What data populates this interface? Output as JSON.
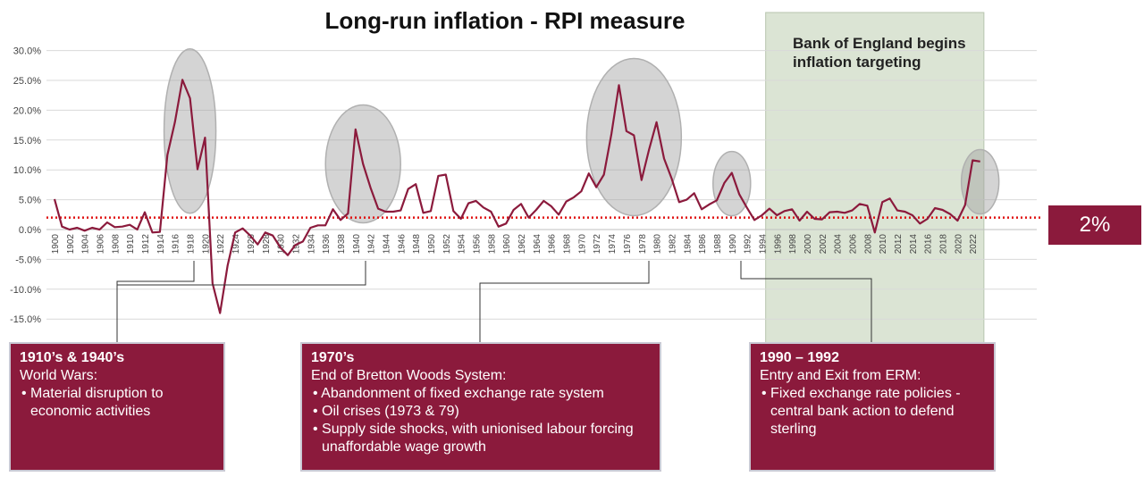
{
  "chart_data": {
    "type": "line",
    "title": "Long-run inflation - RPI measure",
    "ylim": [
      -0.2,
      0.3
    ],
    "yticks": [
      0.3,
      0.25,
      0.2,
      0.15,
      0.1,
      0.05,
      0.0,
      -0.05,
      -0.1,
      -0.15
    ],
    "ytick_labels": [
      "30.0%",
      "25.0%",
      "20.0%",
      "15.0%",
      "10.0%",
      "5.0%",
      "0.0%",
      "-5.0%",
      "-10.0%",
      "-15.0%"
    ],
    "xticks": [
      1900,
      1902,
      1904,
      1906,
      1908,
      1910,
      1912,
      1914,
      1916,
      1918,
      1920,
      1922,
      1924,
      1926,
      1928,
      1930,
      1932,
      1934,
      1936,
      1938,
      1940,
      1942,
      1944,
      1946,
      1948,
      1950,
      1952,
      1954,
      1956,
      1958,
      1960,
      1962,
      1964,
      1966,
      1968,
      1970,
      1972,
      1974,
      1976,
      1978,
      1980,
      1982,
      1984,
      1986,
      1988,
      1990,
      1992,
      1994,
      1996,
      1998,
      2000,
      2002,
      2004,
      2006,
      2008,
      2010,
      2012,
      2014,
      2016,
      2018,
      2020,
      2022
    ],
    "reference_line": {
      "value": 0.02,
      "color": "#e01010",
      "style": "dotted"
    },
    "series": [
      {
        "color": "#8b1a3c",
        "x": [
          1900,
          1901,
          1902,
          1903,
          1904,
          1905,
          1906,
          1907,
          1908,
          1909,
          1910,
          1911,
          1912,
          1913,
          1914,
          1915,
          1916,
          1917,
          1918,
          1919,
          1920,
          1921,
          1922,
          1923,
          1924,
          1925,
          1926,
          1927,
          1928,
          1929,
          1930,
          1931,
          1932,
          1933,
          1934,
          1935,
          1936,
          1937,
          1938,
          1939,
          1940,
          1941,
          1942,
          1943,
          1944,
          1945,
          1946,
          1947,
          1948,
          1949,
          1950,
          1951,
          1952,
          1953,
          1954,
          1955,
          1956,
          1957,
          1958,
          1959,
          1960,
          1961,
          1962,
          1963,
          1964,
          1965,
          1966,
          1967,
          1968,
          1969,
          1970,
          1971,
          1972,
          1973,
          1974,
          1975,
          1976,
          1977,
          1978,
          1979,
          1980,
          1981,
          1982,
          1983,
          1984,
          1985,
          1986,
          1987,
          1988,
          1989,
          1990,
          1991,
          1992,
          1993,
          1994,
          1995,
          1996,
          1997,
          1998,
          1999,
          2000,
          2001,
          2002,
          2003,
          2004,
          2005,
          2006,
          2007,
          2008,
          2009,
          2010,
          2011,
          2012,
          2013,
          2014,
          2015,
          2016,
          2017,
          2018,
          2019,
          2020,
          2021,
          2022,
          2023
        ],
        "values": [
          0.051,
          0.005,
          0.0,
          0.003,
          -0.002,
          0.003,
          0.0,
          0.012,
          0.004,
          0.005,
          0.008,
          0.0,
          0.029,
          -0.005,
          -0.004,
          0.125,
          0.18,
          0.251,
          0.22,
          0.101,
          0.154,
          -0.09,
          -0.14,
          -0.06,
          -0.005,
          0.002,
          -0.01,
          -0.025,
          -0.005,
          -0.01,
          -0.03,
          -0.043,
          -0.026,
          -0.02,
          0.003,
          0.007,
          0.007,
          0.034,
          0.016,
          0.027,
          0.168,
          0.11,
          0.07,
          0.035,
          0.03,
          0.03,
          0.032,
          0.068,
          0.076,
          0.028,
          0.031,
          0.09,
          0.092,
          0.031,
          0.018,
          0.044,
          0.048,
          0.037,
          0.03,
          0.005,
          0.01,
          0.033,
          0.043,
          0.02,
          0.033,
          0.048,
          0.039,
          0.025,
          0.047,
          0.054,
          0.064,
          0.094,
          0.071,
          0.092,
          0.16,
          0.242,
          0.165,
          0.158,
          0.083,
          0.134,
          0.18,
          0.119,
          0.086,
          0.046,
          0.05,
          0.061,
          0.034,
          0.042,
          0.049,
          0.078,
          0.095,
          0.059,
          0.037,
          0.016,
          0.024,
          0.035,
          0.024,
          0.031,
          0.034,
          0.015,
          0.03,
          0.018,
          0.017,
          0.029,
          0.03,
          0.028,
          0.032,
          0.043,
          0.04,
          -0.005,
          0.046,
          0.052,
          0.032,
          0.03,
          0.024,
          0.01,
          0.018,
          0.036,
          0.033,
          0.026,
          0.015,
          0.041,
          0.116,
          0.114
        ]
      }
    ],
    "highlights": [
      {
        "x_center": 1918,
        "y_center": 0.165
      },
      {
        "x_center": 1941,
        "y_center": 0.11
      },
      {
        "x_center": 1977,
        "y_center": 0.155
      },
      {
        "x_center": 1990,
        "y_center": 0.077
      },
      {
        "x_center": 2023,
        "y_center": 0.08
      }
    ],
    "shaded_region": {
      "x_start": 1994.5,
      "x_end": 2023.5,
      "color": "#dbe4d4",
      "label": "Bank of England begins inflation targeting"
    },
    "target_label": "2%"
  },
  "boxes": [
    {
      "id": "ww",
      "heading": "1910’s & 1940’s",
      "sub": "World Wars:",
      "bullets": [
        "Material disruption to economic activities"
      ]
    },
    {
      "id": "bw",
      "heading": "1970’s",
      "sub": "End of Bretton Woods System:",
      "bullets": [
        "Abandonment of fixed exchange rate system",
        "Oil crises (1973 & 79)",
        "Supply side shocks, with unionised labour forcing unaffordable wage growth"
      ]
    },
    {
      "id": "erm",
      "heading": "1990 – 1992",
      "sub": "Entry and Exit from ERM:",
      "bullets": [
        "Fixed exchange rate policies - central bank action to defend sterling"
      ]
    }
  ]
}
